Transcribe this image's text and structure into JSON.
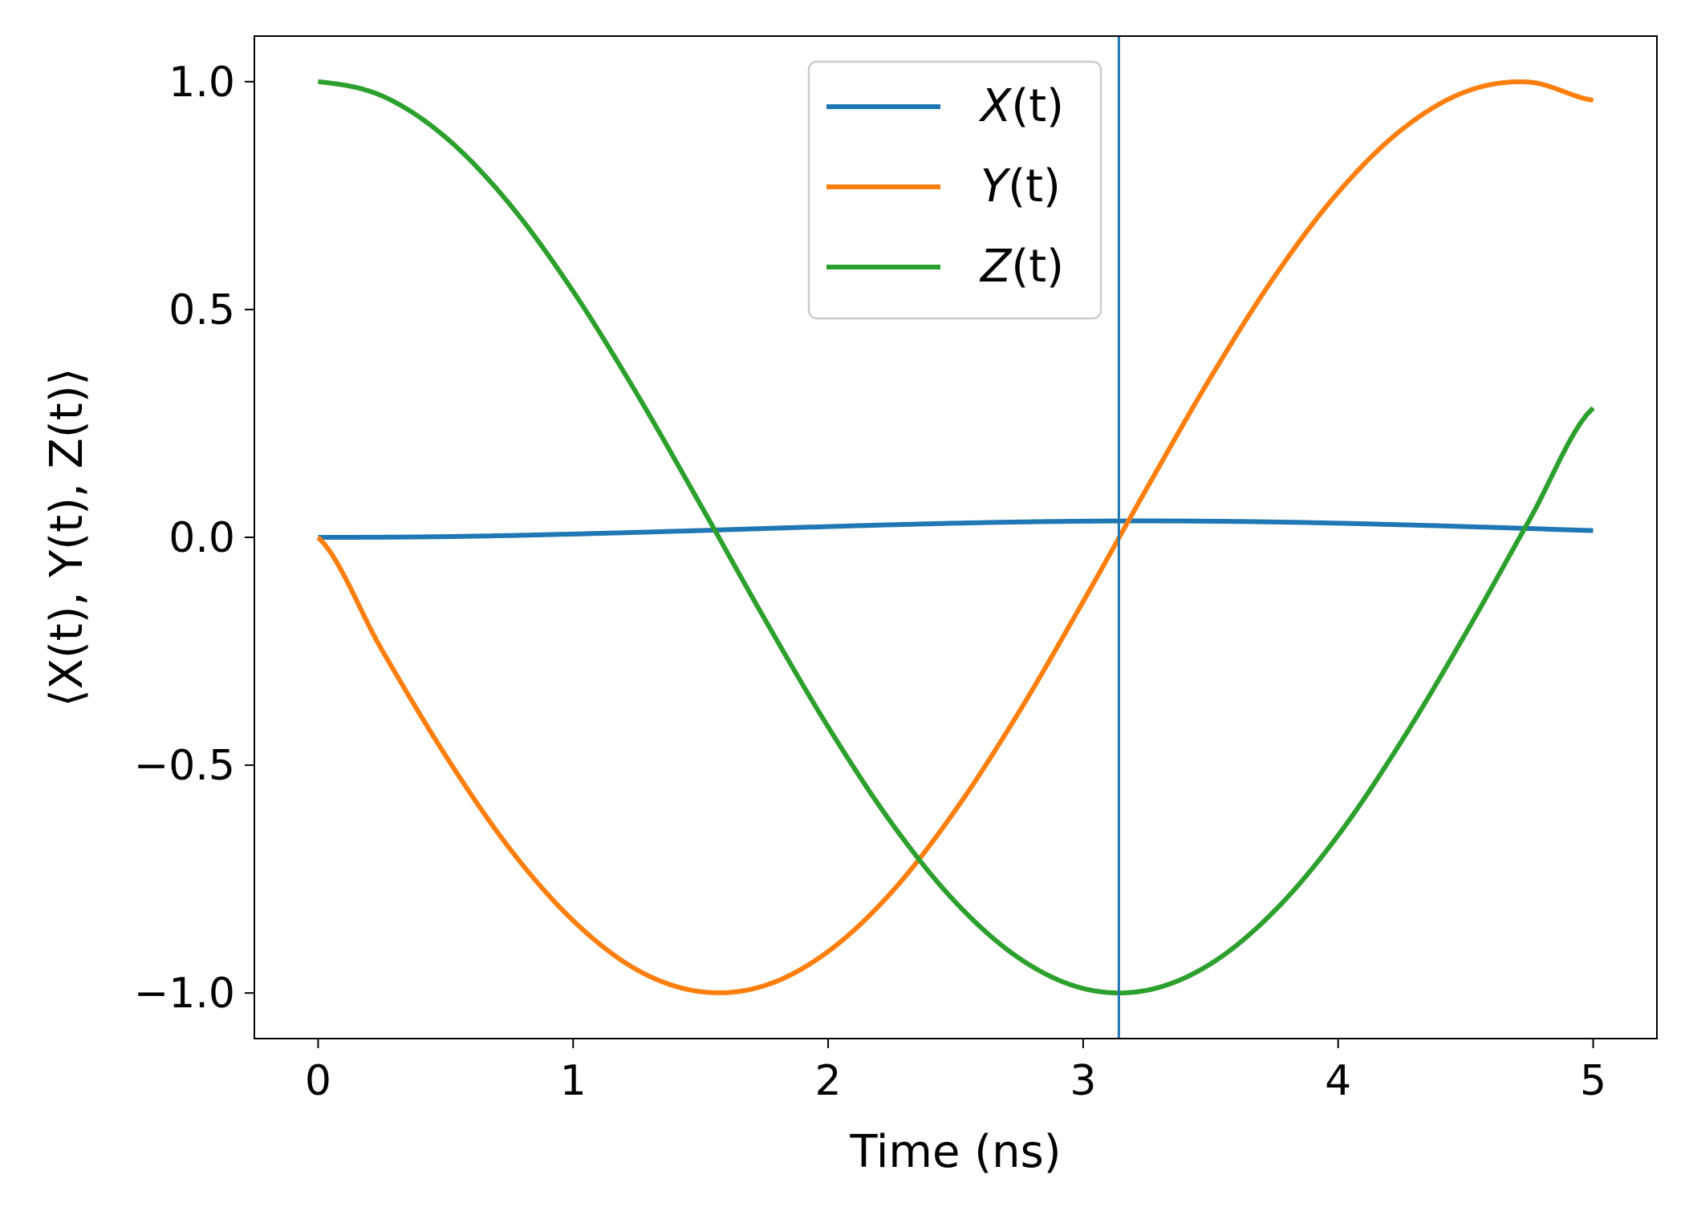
{
  "chart_data": {
    "type": "line",
    "title": "",
    "xlabel": "Time (ns)",
    "ylabel": "⟨X(t), Y(t), Z(t)⟩",
    "xlim": [
      -0.25,
      5.25
    ],
    "ylim": [
      -1.1,
      1.1
    ],
    "xticks": [
      0,
      1,
      2,
      3,
      4,
      5
    ],
    "xtick_labels": [
      "0",
      "1",
      "2",
      "3",
      "4",
      "5"
    ],
    "yticks": [
      1.0,
      0.5,
      0.0,
      -0.5,
      -1.0
    ],
    "ytick_labels": [
      "1.0",
      "0.5",
      "0.0",
      "−0.5",
      "−1.0"
    ],
    "grid": false,
    "legend_position": "top-center",
    "vertical_line": {
      "x": 3.14,
      "color": "#1f77b4"
    },
    "series": [
      {
        "name": "X(t)",
        "legend_main": "X",
        "legend_arg": "(t)",
        "color": "#1f77b4",
        "x": [
          0,
          0.25,
          0.5,
          0.75,
          1.0,
          1.25,
          1.5,
          1.75,
          2.0,
          2.25,
          2.5,
          2.75,
          3.0,
          3.25,
          3.5,
          3.75,
          4.0,
          4.25,
          4.5,
          4.75,
          5.0
        ],
        "y": [
          0.0,
          0.0003,
          0.0016,
          0.004,
          0.0072,
          0.0109,
          0.015,
          0.0193,
          0.0236,
          0.0276,
          0.031,
          0.0337,
          0.0354,
          0.036,
          0.0354,
          0.0337,
          0.031,
          0.0276,
          0.0236,
          0.0193,
          0.015
        ]
      },
      {
        "name": "Y(t)",
        "legend_main": "Y",
        "legend_arg": "(t)",
        "color": "#ff7f0e",
        "x": [
          0,
          0.25,
          0.5,
          0.75,
          1.0,
          1.25,
          1.5,
          1.75,
          2.0,
          2.25,
          2.5,
          2.75,
          3.0,
          3.25,
          3.5,
          3.75,
          4.0,
          4.25,
          4.5,
          4.75,
          5.0
        ],
        "y": [
          0.0,
          -0.247,
          -0.479,
          -0.682,
          -0.841,
          -0.949,
          -0.997,
          -0.984,
          -0.909,
          -0.778,
          -0.598,
          -0.382,
          -0.141,
          0.108,
          0.351,
          0.572,
          0.757,
          0.895,
          0.978,
          0.999,
          0.959
        ]
      },
      {
        "name": "Z(t)",
        "legend_main": "Z",
        "legend_arg": "(t)",
        "color": "#2ca02c",
        "x": [
          0,
          0.25,
          0.5,
          0.75,
          1.0,
          1.25,
          1.5,
          1.75,
          2.0,
          2.25,
          2.5,
          2.75,
          3.0,
          3.25,
          3.5,
          3.75,
          4.0,
          4.25,
          4.5,
          4.75,
          5.0
        ],
        "y": [
          1.0,
          0.969,
          0.878,
          0.732,
          0.54,
          0.315,
          0.071,
          -0.178,
          -0.416,
          -0.628,
          -0.801,
          -0.924,
          -0.99,
          -0.994,
          -0.936,
          -0.82,
          -0.654,
          -0.446,
          -0.211,
          0.038,
          0.284
        ]
      }
    ]
  }
}
